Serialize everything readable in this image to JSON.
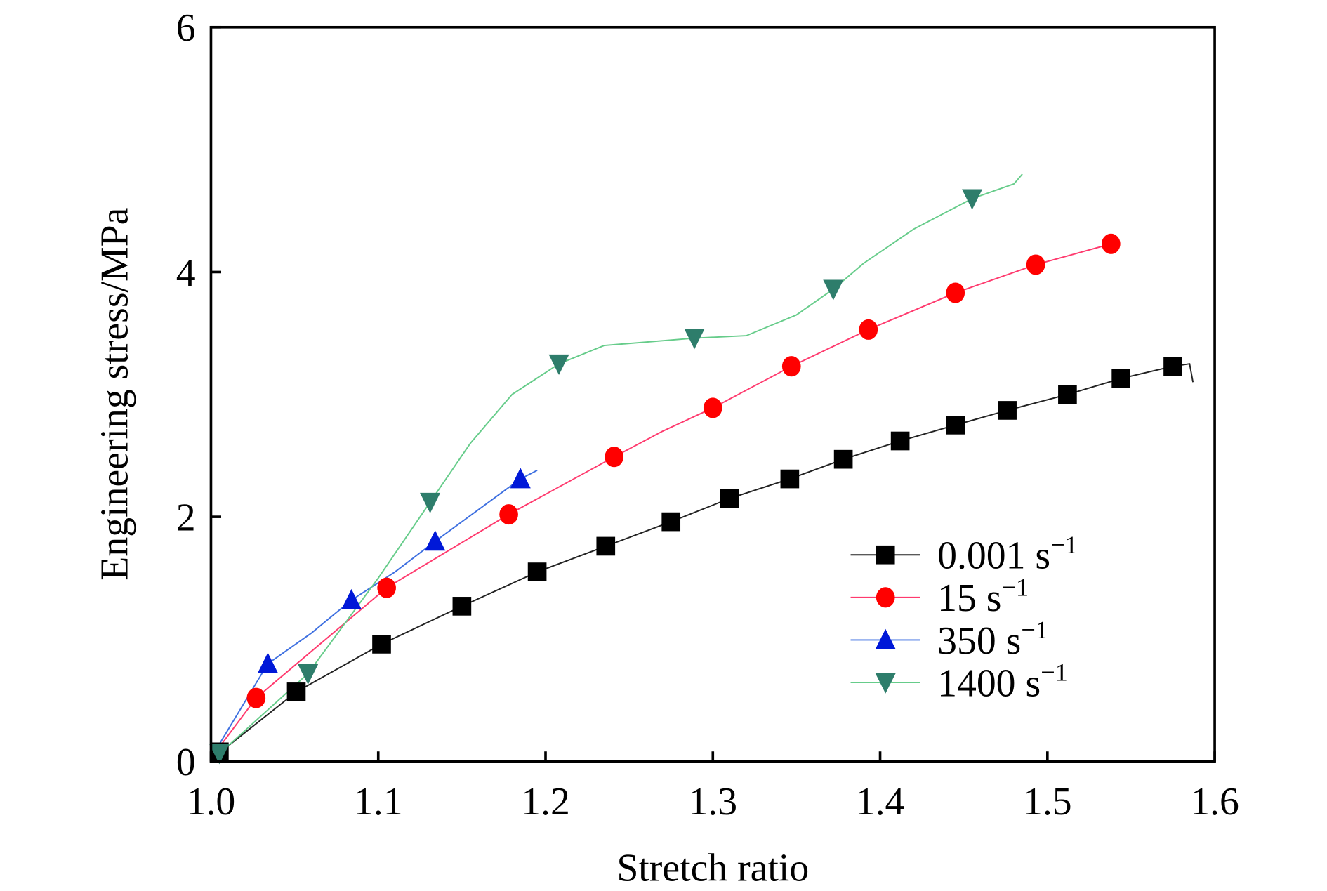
{
  "chart_data": {
    "type": "line",
    "title": "",
    "xlabel": "Stretch ratio",
    "ylabel": "Engineering stress/MPa",
    "xlim": [
      1.0,
      1.6
    ],
    "ylim": [
      0,
      6
    ],
    "xticks": [
      "1.0",
      "1.1",
      "1.2",
      "1.3",
      "1.4",
      "1.5",
      "1.6"
    ],
    "yticks": [
      "0",
      "2",
      "4",
      "6"
    ],
    "xtick_values": [
      1.0,
      1.1,
      1.2,
      1.3,
      1.4,
      1.5,
      1.6
    ],
    "ytick_values": [
      0,
      2,
      4,
      6
    ],
    "grid": false,
    "legend_position": "bottom-right",
    "series": [
      {
        "name": "0.001 s",
        "unit_sup": "−1",
        "marker": "square",
        "marker_color": "#000000",
        "line_color": "#222222",
        "points": [
          [
            1.005,
            0.08
          ],
          [
            1.051,
            0.57
          ],
          [
            1.102,
            0.96
          ],
          [
            1.15,
            1.27
          ],
          [
            1.195,
            1.55
          ],
          [
            1.236,
            1.76
          ],
          [
            1.275,
            1.96
          ],
          [
            1.31,
            2.15
          ],
          [
            1.346,
            2.31
          ],
          [
            1.378,
            2.47
          ],
          [
            1.412,
            2.62
          ],
          [
            1.445,
            2.75
          ],
          [
            1.476,
            2.87
          ],
          [
            1.512,
            3.0
          ],
          [
            1.544,
            3.13
          ],
          [
            1.575,
            3.23
          ]
        ],
        "line": [
          [
            1.003,
            0.05
          ],
          [
            1.051,
            0.57
          ],
          [
            1.102,
            0.96
          ],
          [
            1.15,
            1.27
          ],
          [
            1.195,
            1.55
          ],
          [
            1.236,
            1.76
          ],
          [
            1.275,
            1.96
          ],
          [
            1.31,
            2.15
          ],
          [
            1.346,
            2.31
          ],
          [
            1.378,
            2.47
          ],
          [
            1.412,
            2.62
          ],
          [
            1.445,
            2.75
          ],
          [
            1.476,
            2.87
          ],
          [
            1.512,
            3.0
          ],
          [
            1.544,
            3.13
          ],
          [
            1.575,
            3.23
          ],
          [
            1.585,
            3.25
          ],
          [
            1.587,
            3.1
          ]
        ]
      },
      {
        "name": "15 s",
        "unit_sup": "−1",
        "marker": "circle",
        "marker_color": "#ff0000",
        "line_color": "#ff3a6e",
        "points": [
          [
            1.027,
            0.52
          ],
          [
            1.105,
            1.42
          ],
          [
            1.178,
            2.02
          ],
          [
            1.241,
            2.49
          ],
          [
            1.3,
            2.89
          ],
          [
            1.347,
            3.23
          ],
          [
            1.393,
            3.53
          ],
          [
            1.445,
            3.83
          ],
          [
            1.493,
            4.06
          ],
          [
            1.538,
            4.23
          ]
        ],
        "line": [
          [
            1.004,
            0.1
          ],
          [
            1.027,
            0.52
          ],
          [
            1.105,
            1.42
          ],
          [
            1.178,
            2.02
          ],
          [
            1.241,
            2.49
          ],
          [
            1.27,
            2.7
          ],
          [
            1.3,
            2.89
          ],
          [
            1.347,
            3.23
          ],
          [
            1.393,
            3.53
          ],
          [
            1.445,
            3.83
          ],
          [
            1.493,
            4.06
          ],
          [
            1.538,
            4.23
          ]
        ]
      },
      {
        "name": "350 s",
        "unit_sup": "−1",
        "marker": "triangle-up",
        "marker_color": "#0018d8",
        "line_color": "#3d6fe0",
        "points": [
          [
            1.034,
            0.8
          ],
          [
            1.084,
            1.32
          ],
          [
            1.134,
            1.8
          ],
          [
            1.185,
            2.31
          ]
        ],
        "line": [
          [
            1.004,
            0.12
          ],
          [
            1.034,
            0.8
          ],
          [
            1.06,
            1.05
          ],
          [
            1.084,
            1.32
          ],
          [
            1.11,
            1.55
          ],
          [
            1.134,
            1.8
          ],
          [
            1.185,
            2.31
          ],
          [
            1.195,
            2.38
          ]
        ]
      },
      {
        "name": "1400 s",
        "unit_sup": "−1",
        "marker": "triangle-down",
        "marker_color": "#2e7d6b",
        "line_color": "#66cc8a",
        "points": [
          [
            1.005,
            0.07
          ],
          [
            1.058,
            0.72
          ],
          [
            1.131,
            2.12
          ],
          [
            1.208,
            3.25
          ],
          [
            1.289,
            3.46
          ],
          [
            1.372,
            3.86
          ],
          [
            1.455,
            4.6
          ]
        ],
        "line": [
          [
            1.003,
            0.04
          ],
          [
            1.058,
            0.72
          ],
          [
            1.1,
            1.5
          ],
          [
            1.131,
            2.12
          ],
          [
            1.155,
            2.6
          ],
          [
            1.18,
            3.0
          ],
          [
            1.208,
            3.25
          ],
          [
            1.235,
            3.4
          ],
          [
            1.289,
            3.46
          ],
          [
            1.32,
            3.48
          ],
          [
            1.35,
            3.65
          ],
          [
            1.372,
            3.86
          ],
          [
            1.39,
            4.07
          ],
          [
            1.42,
            4.35
          ],
          [
            1.455,
            4.6
          ],
          [
            1.48,
            4.72
          ],
          [
            1.485,
            4.8
          ]
        ]
      }
    ]
  }
}
